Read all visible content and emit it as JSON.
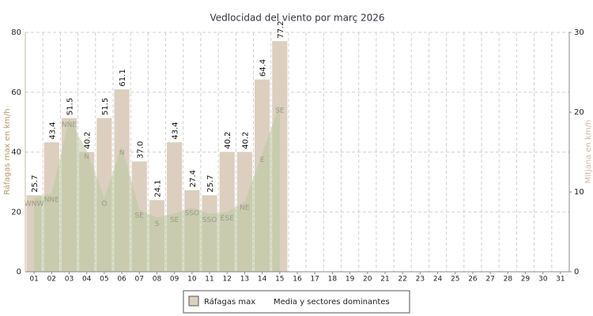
{
  "chart_data": {
    "type": "bar",
    "title": "Vedlocidad del viento por març 2026",
    "ylabel": "Ráfagas max en km/h",
    "y2label": "Mitjana en km/h",
    "categories": [
      "01",
      "02",
      "03",
      "04",
      "05",
      "06",
      "07",
      "08",
      "09",
      "10",
      "11",
      "12",
      "13",
      "14",
      "15",
      "16",
      "17",
      "18",
      "19",
      "20",
      "21",
      "22",
      "23",
      "24",
      "25",
      "26",
      "27",
      "28",
      "29",
      "30",
      "31"
    ],
    "ylim": [
      0,
      80
    ],
    "yticks": [
      0,
      20,
      40,
      60,
      80
    ],
    "y2lim": [
      0,
      30
    ],
    "y2ticks": [
      0,
      10,
      20,
      30
    ],
    "grid": true,
    "series": [
      {
        "name": "Ráfagas max",
        "color": "#dccfbf",
        "values": [
          25.7,
          43.4,
          51.5,
          40.2,
          51.5,
          61.1,
          37.0,
          24.1,
          43.4,
          27.4,
          25.7,
          40.2,
          40.2,
          64.4,
          77.2,
          null,
          null,
          null,
          null,
          null,
          null,
          null,
          null,
          null,
          null,
          null,
          null,
          null,
          null,
          null,
          null
        ],
        "value_labels": [
          "25.7",
          "43.4",
          "51.5",
          "40.2",
          "51.5",
          "61.1",
          "37.0",
          "24.1",
          "43.4",
          "27.4",
          "25.7",
          "40.2",
          "40.2",
          "64.4",
          "77.2",
          null,
          null,
          null,
          null,
          null,
          null,
          null,
          null,
          null,
          null,
          null,
          null,
          null,
          null,
          null,
          null
        ]
      },
      {
        "name": "Media y sectores dominantes",
        "color": "#b9c8a0",
        "axis": "y2",
        "values": [
          9.3,
          9.8,
          19.2,
          15.2,
          9.3,
          15.7,
          7.8,
          6.8,
          7.3,
          8.1,
          7.3,
          7.5,
          8.8,
          14.8,
          21.0,
          null,
          null,
          null,
          null,
          null,
          null,
          null,
          null,
          null,
          null,
          null,
          null,
          null,
          null,
          null,
          null
        ],
        "sectors": [
          "WNW",
          "NNE",
          "NNE",
          "N",
          "O",
          "N",
          "SE",
          "S",
          "SE",
          "SSO",
          "SSO",
          "ESE",
          "NE",
          "E",
          "SE",
          null,
          null,
          null,
          null,
          null,
          null,
          null,
          null,
          null,
          null,
          null,
          null,
          null,
          null,
          null,
          null
        ]
      }
    ]
  }
}
